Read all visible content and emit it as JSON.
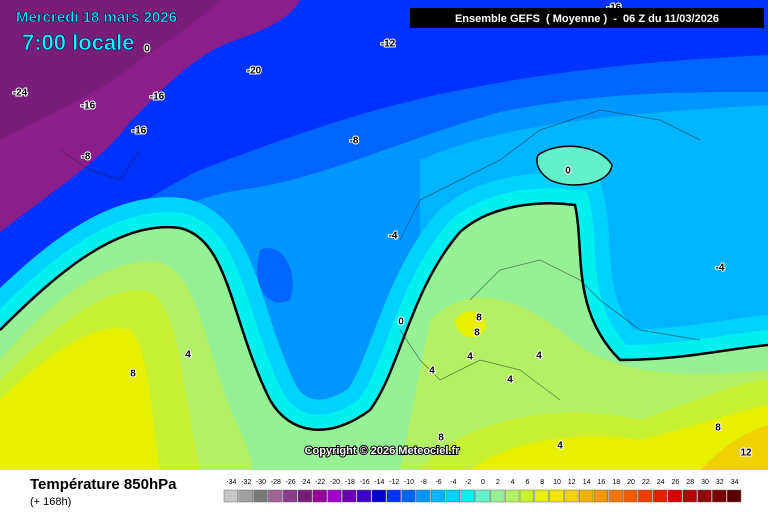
{
  "header": {
    "date": "Mercredi 18 mars 2026",
    "time": "7:00 locale",
    "model": "Ensemble GEFS  ( Moyenne )  -  06 Z du 11/03/2026"
  },
  "map": {
    "contour_labels": [
      0,
      -24,
      -16,
      -16,
      -20,
      -12,
      -16,
      -8,
      -8,
      -16,
      0,
      -4,
      -4,
      0,
      8,
      8,
      4,
      8,
      4,
      4,
      4,
      4,
      8,
      4,
      8,
      12
    ]
  },
  "copyright": "Copyright © 2026 Meteociel.fr",
  "footer": {
    "title": "Température 850hPa",
    "lead": "(+ 168h)"
  },
  "scale": {
    "labels": [
      -34,
      -32,
      -30,
      -28,
      -26,
      -24,
      -22,
      -20,
      -18,
      -16,
      -14,
      -12,
      -10,
      -8,
      -6,
      -4,
      -2,
      0,
      2,
      4,
      6,
      8,
      10,
      12,
      14,
      16,
      18,
      20,
      22,
      24,
      26,
      28,
      30,
      32,
      34
    ],
    "colors": [
      "#c8c8c8",
      "#a0a0a0",
      "#787878",
      "#a06496",
      "#8c3c8c",
      "#781e78",
      "#960096",
      "#a000c8",
      "#6e00b4",
      "#3c00c8",
      "#0000c8",
      "#0032ff",
      "#0064ff",
      "#0096ff",
      "#00b4ff",
      "#00d2ff",
      "#00f0f0",
      "#64f0c8",
      "#96f096",
      "#b4f064",
      "#c8f032",
      "#e6f000",
      "#f0e600",
      "#f0d200",
      "#f0b400",
      "#f09600",
      "#f07800",
      "#f05a00",
      "#f03c00",
      "#e61e00",
      "#d20000",
      "#b40000",
      "#960000",
      "#780000",
      "#5a0000"
    ]
  }
}
